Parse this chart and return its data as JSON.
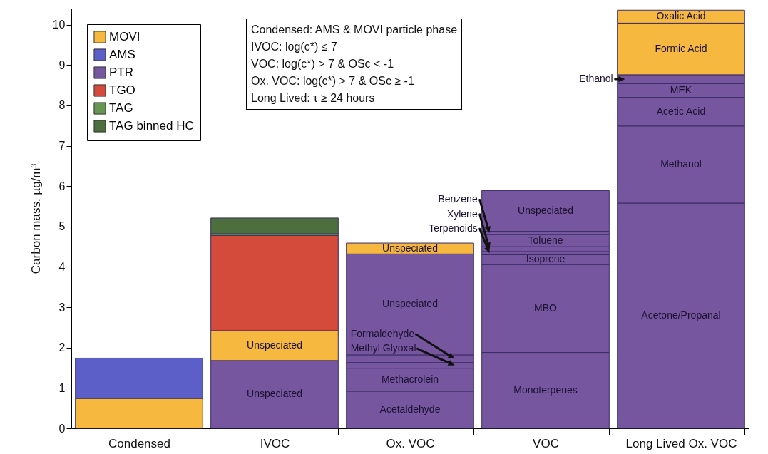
{
  "chart_data": {
    "type": "bar",
    "stacked": true,
    "ylabel": "Carbon mass, µg/m³",
    "categories": [
      "Condensed",
      "IVOC",
      "Ox. VOC",
      "VOC",
      "Long Lived Ox. VOC"
    ],
    "ylim": [
      0,
      10.4
    ],
    "yticks": [
      0,
      1,
      2,
      3,
      4,
      5,
      6,
      7,
      8,
      9,
      10
    ],
    "legend": "top left",
    "series": [
      {
        "name": "MOVI",
        "color": "#f7b83f",
        "values": [
          0.74,
          null,
          null,
          null,
          null
        ]
      },
      {
        "name": "AMS",
        "color": "#5b5fc7",
        "values": [
          1.0,
          null,
          null,
          null,
          null
        ]
      },
      {
        "name": "PTR",
        "color": "#76569f",
        "values": [
          null,
          1.68,
          0.92,
          1.88,
          5.58
        ],
        "value_labels": [
          null,
          "Unspeciated",
          "Acetaldehyde",
          "Monoterpenes",
          "Acetone/Propanal"
        ]
      },
      {
        "color": "#76569f",
        "values": [
          null,
          null,
          0.57,
          2.18,
          1.91
        ],
        "value_labels": [
          null,
          null,
          "Methacrolein",
          "MBO",
          "Methanol"
        ]
      },
      {
        "color": "#76569f",
        "values": [
          null,
          null,
          0.14,
          0.24,
          0.71
        ],
        "value_labels": [
          null,
          null,
          "Methyl Glyoxal",
          "Isoprene",
          "Acetic Acid"
        ]
      },
      {
        "color": "#76569f",
        "values": [
          null,
          null,
          0.19,
          0.08,
          0.34
        ],
        "value_labels": [
          null,
          null,
          "Formaldehyde",
          "Terpenoids",
          "MEK"
        ]
      },
      {
        "color": "#76569f",
        "values": [
          null,
          null,
          2.5,
          0.12,
          0.22
        ],
        "value_labels": [
          null,
          null,
          "Unspeciated",
          "Xylene",
          "Ethanol"
        ]
      },
      {
        "color": "#76569f",
        "values": [
          null,
          null,
          null,
          0.3,
          null
        ],
        "value_labels": [
          null,
          null,
          null,
          "Toluene",
          null
        ]
      },
      {
        "color": "#76569f",
        "values": [
          null,
          null,
          null,
          0.08,
          null
        ],
        "value_labels": [
          null,
          null,
          null,
          "Benzene",
          null
        ]
      },
      {
        "color": "#76569f",
        "values": [
          null,
          null,
          null,
          1.01,
          null
        ],
        "value_labels": [
          null,
          null,
          null,
          "Unspeciated",
          null
        ]
      },
      {
        "color": "#f7b83f",
        "values": [
          null,
          0.74,
          0.27,
          null,
          1.28
        ],
        "value_labels": [
          null,
          "Unspeciated",
          "Unspeciated",
          null,
          "Formic Acid"
        ]
      },
      {
        "color": "#f7b83f",
        "values": [
          null,
          null,
          null,
          null,
          0.32
        ],
        "value_labels": [
          null,
          null,
          null,
          null,
          "Oxalic Acid"
        ]
      },
      {
        "name": "TGO",
        "color": "#d44b3c",
        "values": [
          null,
          2.36,
          null,
          null,
          null
        ]
      },
      {
        "name": "TAG",
        "color": "#679552",
        "values": [
          null,
          0.04,
          null,
          null,
          null
        ]
      },
      {
        "name": "TAG binned HC",
        "color": "#4d6f3d",
        "values": [
          null,
          0.39,
          null,
          null,
          null
        ]
      }
    ],
    "annotations": [
      "Condensed: AMS & MOVI particle phase",
      "IVOC: log(c*) ≤ 7",
      "VOC: log(c*) > 7 & OSc < -1",
      "Ox. VOC: log(c*) > 7 & OSc ≥ -1",
      "Long Lived: τ ≥ 24 hours"
    ]
  }
}
